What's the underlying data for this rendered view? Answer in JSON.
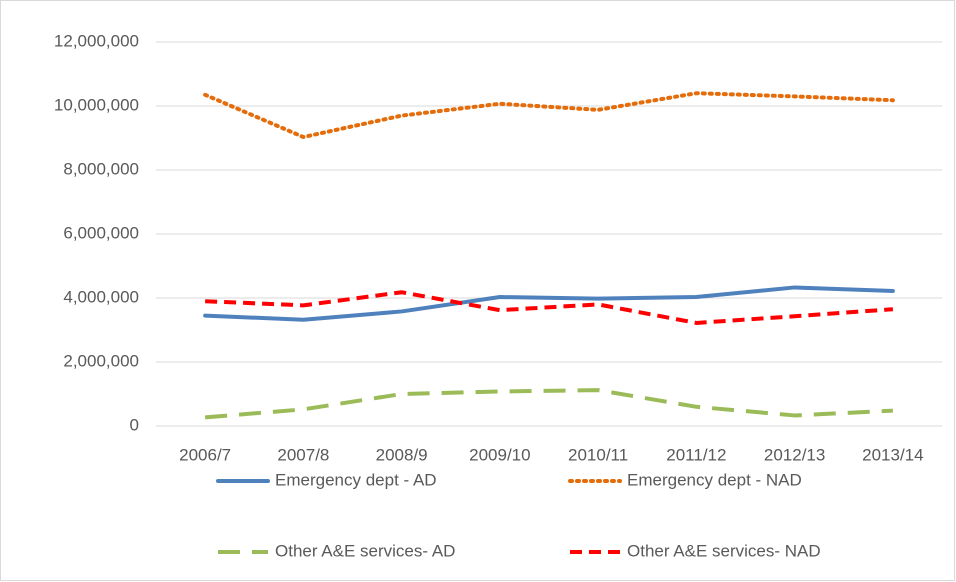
{
  "chart_data": {
    "type": "line",
    "categories": [
      "2006/7",
      "2007/8",
      "2008/9",
      "2009/10",
      "2010/11",
      "2011/12",
      "2012/13",
      "2013/14"
    ],
    "series": [
      {
        "name": "Emergency dept - AD",
        "color": "#4f81bd",
        "dash": "solid",
        "values": [
          3450000,
          3320000,
          3580000,
          4030000,
          3980000,
          4030000,
          4330000,
          4220000
        ]
      },
      {
        "name": "Emergency dept - NAD",
        "color": "#e46c0a",
        "dash": "dotted",
        "values": [
          10350000,
          9030000,
          9700000,
          10070000,
          9880000,
          10400000,
          10300000,
          10180000
        ]
      },
      {
        "name": "Other A&E services- AD",
        "color": "#9bbb59",
        "dash": "long-dash",
        "values": [
          270000,
          520000,
          1000000,
          1080000,
          1120000,
          600000,
          330000,
          480000
        ]
      },
      {
        "name": "Other A&E services- NAD",
        "color": "#ff0000",
        "dash": "dash",
        "values": [
          3900000,
          3770000,
          4180000,
          3620000,
          3800000,
          3220000,
          3430000,
          3650000
        ]
      }
    ],
    "ylim": [
      0,
      12000000
    ],
    "yticks": [
      0,
      {
        "value": 2000000,
        "label": "2,000,000"
      },
      {
        "value": 4000000,
        "label": "4,000,000"
      },
      {
        "value": 6000000,
        "label": "6,000,000"
      },
      {
        "value": 8000000,
        "label": "8,000,000"
      },
      {
        "value": 10000000,
        "label": "10,000,000"
      },
      {
        "value": 12000000,
        "label": "12,000,000"
      }
    ],
    "grid": true,
    "legend": "bottom"
  }
}
